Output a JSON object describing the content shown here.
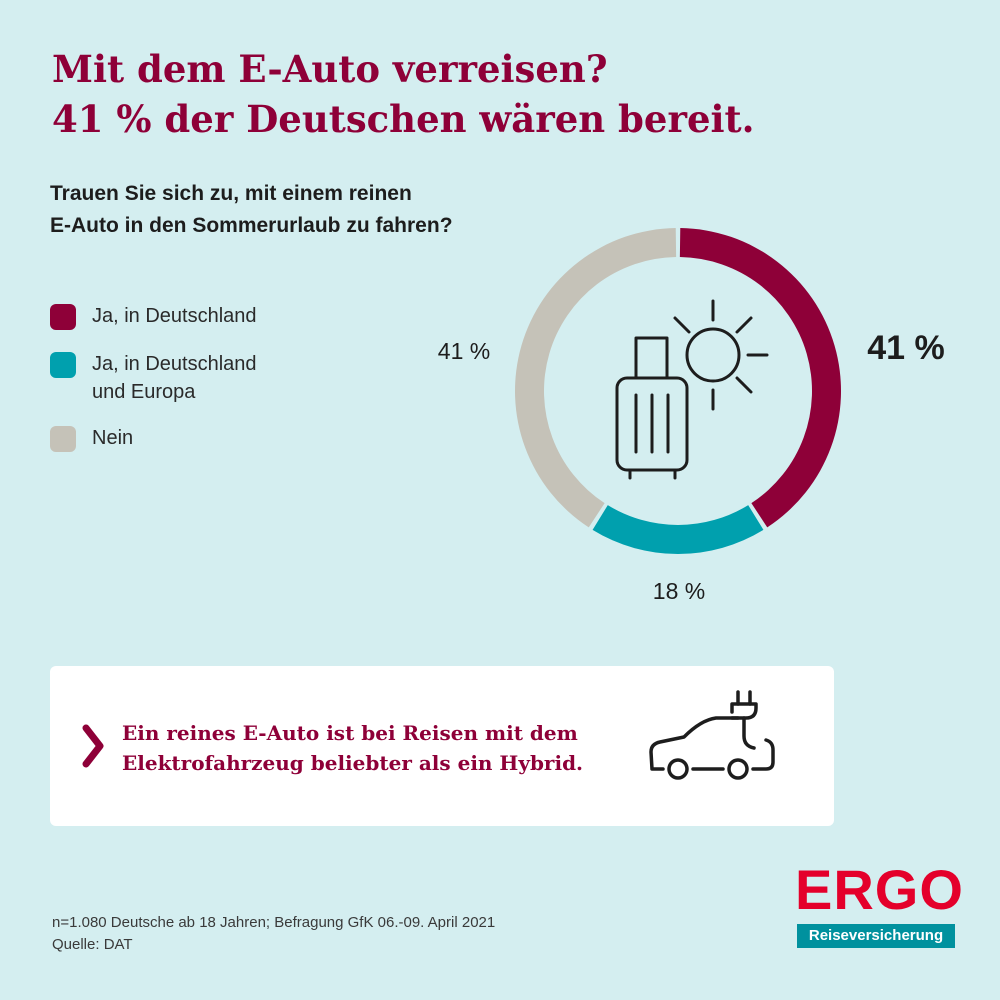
{
  "title": {
    "line1": "Mit dem E-Auto verreisen?",
    "line2": "41 % der Deutschen wären bereit."
  },
  "question": {
    "line1": "Trauen Sie sich zu, mit einem reinen",
    "line2": "E-Auto in den Sommerurlaub zu fahren?"
  },
  "legend": [
    {
      "lines": [
        "Ja, in Deutschland"
      ],
      "color": "#8e0038"
    },
    {
      "lines": [
        "Ja, in Deutschland",
        "und Europa"
      ],
      "color": "#00a0ae"
    },
    {
      "lines": [
        "Nein"
      ],
      "color": "#c5c2b8"
    }
  ],
  "chart_data": {
    "type": "pie",
    "categories": [
      "Ja, in Deutschland",
      "Ja, in Deutschland und Europa",
      "Nein"
    ],
    "values": [
      41,
      18,
      41
    ],
    "labels": [
      "41 %",
      "18 %",
      "41 %"
    ],
    "colors": [
      "#8e0038",
      "#00a0ae",
      "#c5c2b8"
    ],
    "title": "Trauen Sie sich zu, mit einem reinen E-Auto in den Sommerurlaub zu fahren?",
    "style": "donut",
    "center_icons": [
      "suitcase-icon",
      "sun-icon"
    ]
  },
  "info": {
    "line1": "Ein reines E-Auto ist bei Reisen mit dem",
    "line2": "Elektrofahrzeug beliebter als ein Hybrid.",
    "icon": "electric-car-icon"
  },
  "brand": {
    "name": "ERGO",
    "subtitle": "Reiseversicherung",
    "color": "#e4002b",
    "sub_color": "#00919e"
  },
  "footnote": {
    "line1": "n=1.080 Deutsche ab 18 Jahren; Befragung GfK 06.-09. April 2021",
    "line2": "Quelle: DAT"
  }
}
